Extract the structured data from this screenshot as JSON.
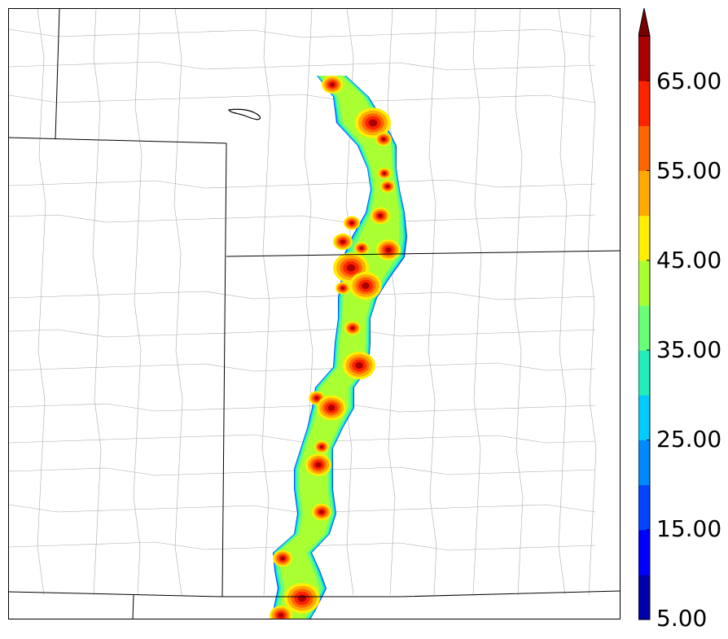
{
  "colorbar": {
    "tick_labels": [
      "5.00",
      "15.00",
      "25.00",
      "35.00",
      "45.00",
      "55.00",
      "65.00"
    ],
    "levels": [
      5,
      10,
      15,
      20,
      25,
      30,
      35,
      40,
      45,
      50,
      55,
      60,
      65,
      70
    ],
    "colors": [
      "#0000aa",
      "#0000ff",
      "#0044ff",
      "#0088ff",
      "#00ccff",
      "#22eebb",
      "#66ff77",
      "#aaff33",
      "#ffee00",
      "#ffaa00",
      "#ff6600",
      "#ff2200",
      "#aa0000"
    ],
    "extend_color": "#7a0000",
    "extend": "max"
  },
  "map": {
    "features": [
      "state-boundaries",
      "county-boundaries",
      "lake-outline",
      "reflectivity-band"
    ],
    "boundary_color": "#000000",
    "county_color": "#aaaaaa"
  }
}
